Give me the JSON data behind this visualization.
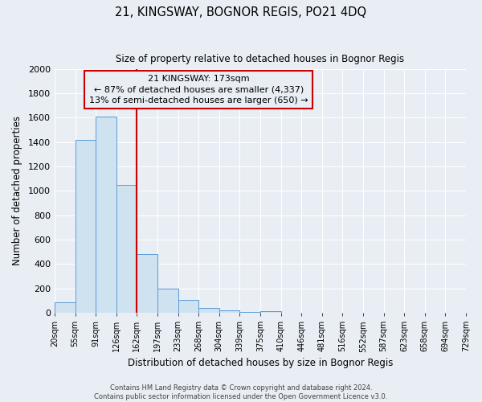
{
  "title": "21, KINGSWAY, BOGNOR REGIS, PO21 4DQ",
  "subtitle": "Size of property relative to detached houses in Bognor Regis",
  "xlabel": "Distribution of detached houses by size in Bognor Regis",
  "ylabel": "Number of detached properties",
  "bar_color": "#cfe2f0",
  "bar_edge_color": "#5b9bd5",
  "bin_labels": [
    "20sqm",
    "55sqm",
    "91sqm",
    "126sqm",
    "162sqm",
    "197sqm",
    "233sqm",
    "268sqm",
    "304sqm",
    "339sqm",
    "375sqm",
    "410sqm",
    "446sqm",
    "481sqm",
    "516sqm",
    "552sqm",
    "587sqm",
    "623sqm",
    "658sqm",
    "694sqm",
    "729sqm"
  ],
  "bar_values": [
    85,
    1420,
    1610,
    1050,
    480,
    200,
    105,
    40,
    20,
    10,
    15,
    0,
    0,
    0,
    0,
    0,
    0,
    0,
    0,
    0
  ],
  "ylim": [
    0,
    2000
  ],
  "yticks": [
    0,
    200,
    400,
    600,
    800,
    1000,
    1200,
    1400,
    1600,
    1800,
    2000
  ],
  "property_line_x": 4.0,
  "annotation_title": "21 KINGSWAY: 173sqm",
  "annotation_line1": "← 87% of detached houses are smaller (4,337)",
  "annotation_line2": "13% of semi-detached houses are larger (650) →",
  "annotation_box_color": "#cc0000",
  "footer1": "Contains HM Land Registry data © Crown copyright and database right 2024.",
  "footer2": "Contains public sector information licensed under the Open Government Licence v3.0.",
  "background_color": "#e8eef4",
  "grid_color": "#ffffff",
  "n_bins": 20
}
